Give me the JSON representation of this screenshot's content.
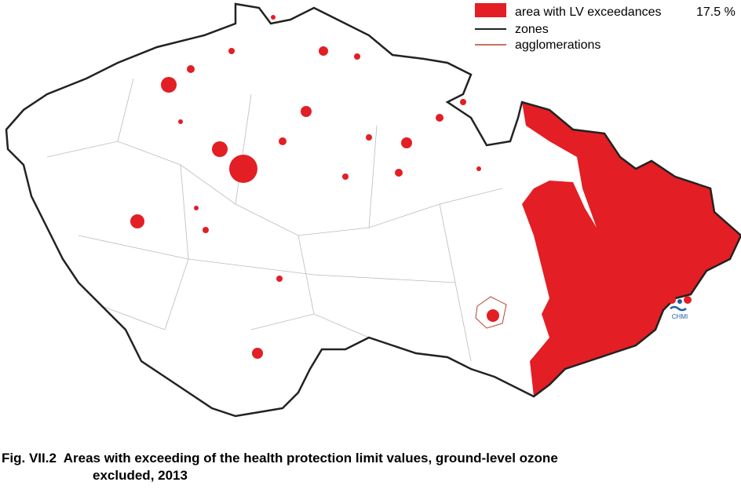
{
  "legend": {
    "items": [
      "area with LV exceedances",
      "zones",
      "agglomerations"
    ],
    "share": "17.5 %"
  },
  "logo": "CHMI",
  "caption": {
    "lines": [
      "Fig. VII.2  Areas with exceeding of the health protection limit values, ground-level ozone",
      "excluded, 2013"
    ]
  }
}
